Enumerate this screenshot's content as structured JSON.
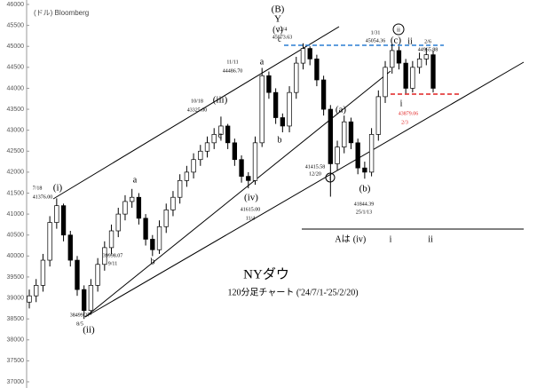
{
  "chart_data": {
    "type": "candlestick",
    "source": "(ドル) Bloomberg",
    "title": "NYダウ",
    "subtitle": "120分足チャート ('24/7/1-'25/2/20)",
    "ylim": [
      37000,
      46000
    ],
    "yticks": [
      46000,
      45500,
      45000,
      44500,
      44000,
      43500,
      43000,
      42500,
      42000,
      41500,
      41000,
      40500,
      40000,
      39500,
      39000,
      38500,
      38000,
      37500,
      37000
    ],
    "open": [
      38900,
      39050,
      39300,
      39900,
      40800,
      41200,
      40500,
      39900,
      39200,
      38700,
      39300,
      39800,
      40200,
      40600,
      41000,
      41300,
      41400,
      40900,
      40400,
      40150,
      40700,
      41100,
      41400,
      41800,
      42000,
      42300,
      42500,
      42700,
      42900,
      43100,
      42700,
      42300,
      41900,
      41800,
      42700,
      44300,
      43900,
      43300,
      43100,
      43900,
      44600,
      44950,
      44700,
      44200,
      43500,
      42200,
      42600,
      43200,
      42700,
      42100,
      42000,
      42900,
      43800,
      44500,
      44900,
      44600,
      44000,
      44500,
      44700,
      44800
    ],
    "high": [
      39200,
      39450,
      40050,
      40950,
      41376,
      41250,
      40600,
      40000,
      39300,
      39450,
      39950,
      40350,
      40750,
      41150,
      41450,
      41600,
      41500,
      41000,
      40500,
      40850,
      41250,
      41550,
      41950,
      42150,
      42450,
      42650,
      42850,
      43050,
      43325,
      43150,
      42800,
      42400,
      42000,
      42850,
      44486,
      44400,
      44000,
      43400,
      44050,
      44750,
      45073,
      45000,
      44800,
      44300,
      43600,
      42750,
      43350,
      43300,
      42800,
      42250,
      43050,
      43950,
      44650,
      45054,
      45000,
      44700,
      44650,
      44850,
      44965,
      44900
    ],
    "low": [
      38750,
      38900,
      39150,
      39750,
      40650,
      40350,
      39750,
      39050,
      38499,
      38600,
      39150,
      39650,
      40050,
      40450,
      40850,
      41150,
      40750,
      40250,
      39998,
      40050,
      40550,
      40950,
      41250,
      41650,
      41850,
      42150,
      42350,
      42550,
      42750,
      42550,
      42150,
      41750,
      41615,
      41700,
      42600,
      43750,
      43150,
      42950,
      42950,
      43750,
      44450,
      44550,
      44050,
      43350,
      41415,
      42050,
      42450,
      42550,
      41950,
      41844,
      41900,
      42750,
      43650,
      44350,
      44450,
      43879,
      43900,
      44350,
      44550,
      43900
    ],
    "close": [
      39050,
      39300,
      39900,
      40800,
      41200,
      40500,
      39900,
      39200,
      38700,
      39300,
      39800,
      40200,
      40600,
      41000,
      41300,
      41400,
      40900,
      40400,
      40150,
      40700,
      41100,
      41400,
      41800,
      42000,
      42300,
      42500,
      42700,
      42900,
      43100,
      42700,
      42300,
      41900,
      41800,
      42700,
      44300,
      43900,
      43300,
      43100,
      43900,
      44600,
      44950,
      44700,
      44200,
      43500,
      42200,
      42600,
      43200,
      42700,
      42100,
      42000,
      42900,
      43800,
      44500,
      44900,
      44600,
      44000,
      44500,
      44700,
      44800,
      44000
    ],
    "annotations": [
      "(B)",
      "Y",
      "(v)",
      "c",
      "12/4",
      "45073.63",
      "(i)",
      "7/18",
      "41376.00",
      "(ii)",
      "38499.27",
      "8/5",
      "a",
      "b",
      "39998.07",
      "9/11",
      "(iii)",
      "10/18",
      "43325.00",
      "c",
      "(iv)",
      "41615.00",
      "11/4",
      "a",
      "b",
      "11/11",
      "44486.70",
      "(a)",
      "41415.58",
      "12/20",
      "i",
      "(b)",
      "41844.39",
      "25/1/13",
      "1/31",
      "45054.36",
      "ii",
      "(c)",
      "ii",
      "2/6",
      "44965.88",
      "i",
      "43879.06",
      "2/3",
      "Aは",
      "(iv)",
      "i",
      "ii"
    ]
  }
}
